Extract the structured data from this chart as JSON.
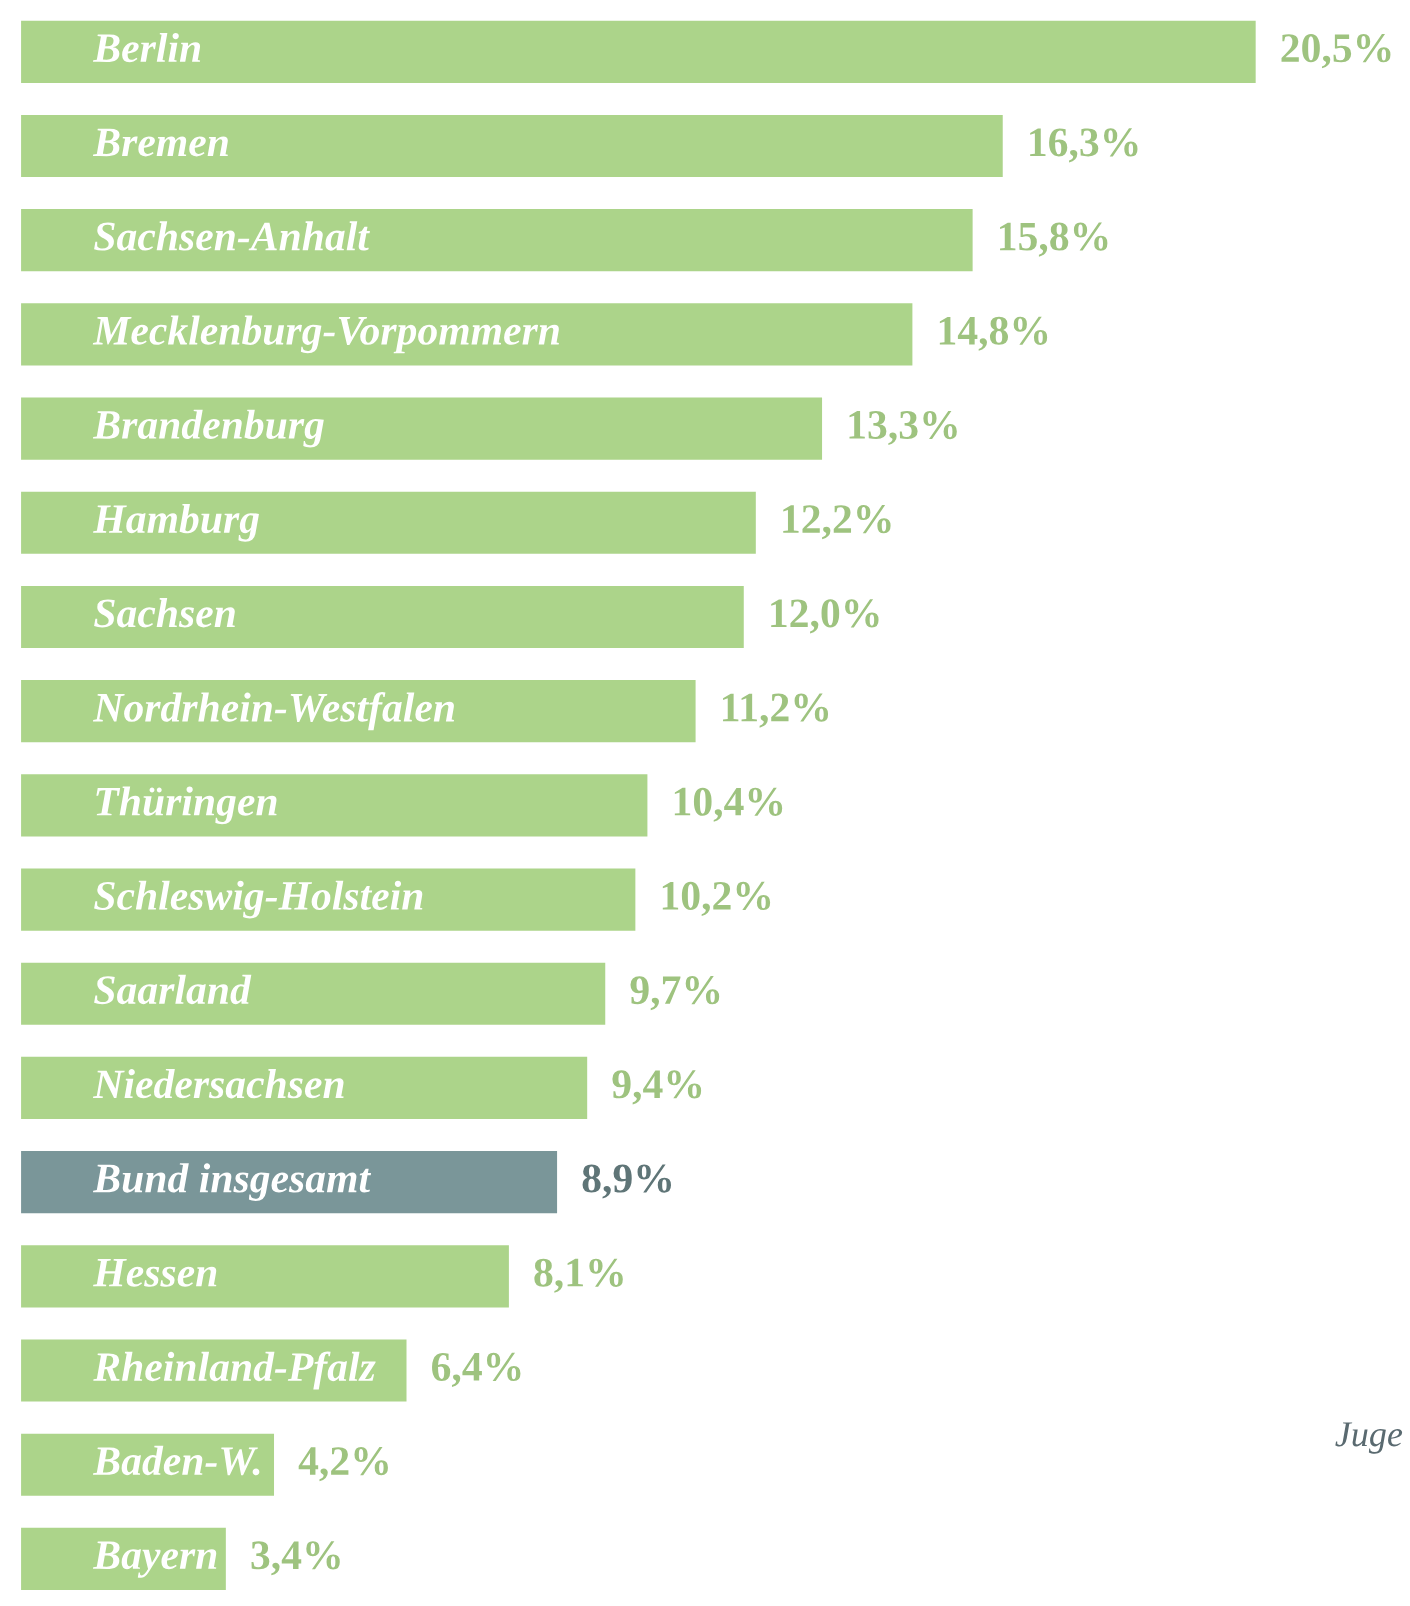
{
  "chart_data": {
    "type": "bar",
    "orientation": "horizontal",
    "categories": [
      "Berlin",
      "Bremen",
      "Sachsen-Anhalt",
      "Mecklenburg-Vorpommern",
      "Brandenburg",
      "Hamburg",
      "Sachsen",
      "Nordrhein-Westfalen",
      "Thüringen",
      "Schleswig-Holstein",
      "Saarland",
      "Niedersachsen",
      "Bund insgesamt",
      "Hessen",
      "Rheinland-Pfalz",
      "Baden-W.",
      "Bayern"
    ],
    "values": [
      20.5,
      16.3,
      15.8,
      14.8,
      13.3,
      12.2,
      12.0,
      11.2,
      10.4,
      10.2,
      9.7,
      9.4,
      8.9,
      8.1,
      6.4,
      4.2,
      3.4
    ],
    "value_labels": [
      "20,5%",
      "16,3%",
      "15,8%",
      "14,8%",
      "13,3%",
      "12,2%",
      "12,0%",
      "11,2%",
      "10,4%",
      "10,2%",
      "9,7%",
      "9,4%",
      "8,9%",
      "8,1%",
      "6,4%",
      "4,2%",
      "3,4%"
    ],
    "colors": [
      "#acd48a",
      "#acd48a",
      "#acd48a",
      "#acd48a",
      "#acd48a",
      "#acd48a",
      "#acd48a",
      "#acd48a",
      "#acd48a",
      "#acd48a",
      "#acd48a",
      "#acd48a",
      "#7a9699",
      "#acd48a",
      "#acd48a",
      "#acd48a",
      "#acd48a"
    ],
    "annotations": [
      "Juge"
    ]
  }
}
